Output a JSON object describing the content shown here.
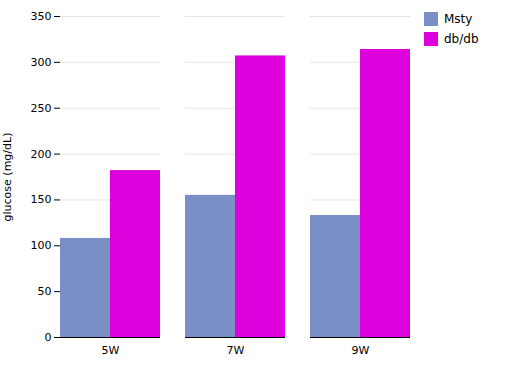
{
  "chart_data": {
    "type": "bar",
    "categories": [
      "5W",
      "7W",
      "9W"
    ],
    "series": [
      {
        "name": "Msty",
        "color": "#7b8fc7",
        "values": [
          108,
          155,
          133
        ]
      },
      {
        "name": "db/db",
        "color": "#dd00dd",
        "values": [
          182,
          307,
          314
        ]
      }
    ],
    "ylabel": "glucose (mg/dL)",
    "ylim": [
      0,
      350
    ],
    "yticks": [
      0,
      50,
      100,
      150,
      200,
      250,
      300,
      350
    ],
    "grid": true,
    "legend": "right"
  }
}
